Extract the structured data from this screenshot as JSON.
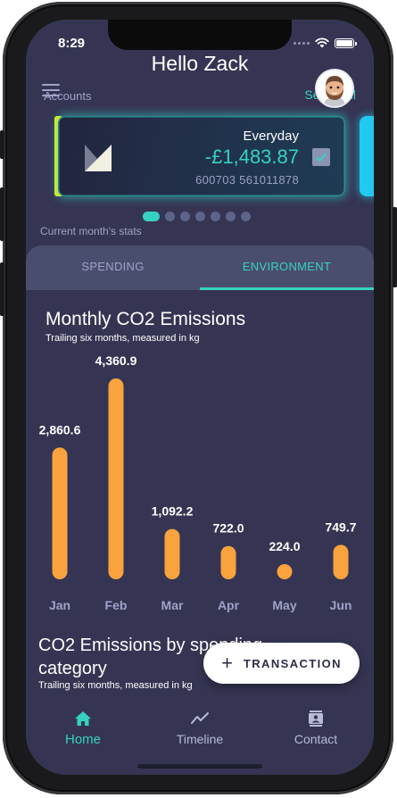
{
  "status_bar": {
    "time": "8:29"
  },
  "header": {
    "greeting": "Hello Zack",
    "accounts_label": "Accounts",
    "select_all_label": "Select All"
  },
  "account_card": {
    "name": "Everyday",
    "balance": "-£1,483.87",
    "number": "600703 561011878",
    "selected": true
  },
  "pager": {
    "total": 7,
    "active_index": 0
  },
  "stats_label": "Current month's stats",
  "tabs": [
    {
      "label": "SPENDING",
      "active": false
    },
    {
      "label": "ENVIRONMENT",
      "active": true
    }
  ],
  "emissions_chart": {
    "title": "Monthly CO2 Emissions",
    "subtitle": "Trailing six months, measured in kg"
  },
  "chart_data": {
    "type": "bar",
    "title": "Monthly CO2 Emissions",
    "subtitle": "Trailing six months, measured in kg",
    "categories": [
      "Jan",
      "Feb",
      "Mar",
      "Apr",
      "May",
      "Jun"
    ],
    "values": [
      2860.6,
      4360.9,
      1092.2,
      722.0,
      224.0,
      749.7
    ],
    "value_labels": [
      "2,860.6",
      "4,360.9",
      "1,092.2",
      "722.0",
      "224.0",
      "749.7"
    ],
    "xlabel": "",
    "ylabel": "",
    "grid": false,
    "bar_color": "#f8a33d"
  },
  "category_chart": {
    "title": "CO2 Emissions by spending category",
    "subtitle": "Trailing six months, measured in kg"
  },
  "fab": {
    "label": "TRANSACTION"
  },
  "bottom_nav": {
    "home_label": "Home",
    "timeline_label": "Timeline",
    "contact_label": "Contact"
  },
  "colors": {
    "background": "#353553",
    "accent": "#35d2bf",
    "bar": "#f8a33d",
    "tab_bar": "#4a4e6e"
  }
}
